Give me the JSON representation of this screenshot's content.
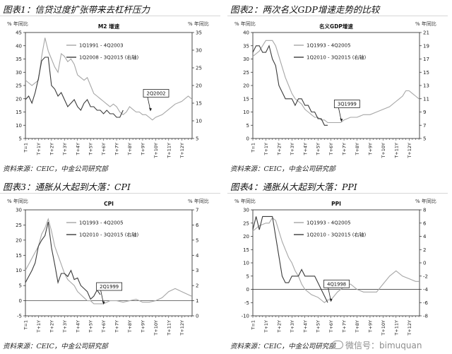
{
  "source_note": "资料来源：CEIC，中金公司研究部",
  "watermark": "微信号：bimuquan",
  "panels": [
    {
      "heading": "图表1：信贷过度扩张带来去杠杆压力",
      "source": "资料来源：CEIC，中金公司研究部",
      "chart_title": "M2 增速",
      "left_axis_label": "% 年同比",
      "right_axis_label": "% 年同比",
      "annotation": "2Q2002",
      "legend": [
        "1Q1991 - 4Q2003",
        "1Q2008 - 3Q2015 (右轴)"
      ],
      "colors": {
        "primary": "#a6a6a6",
        "secondary": "#3a3a3a"
      }
    },
    {
      "heading": "图表2：两次名义GDP增速走势的比较",
      "source": "资料来源：CEIC，中金公司研究部",
      "chart_title": "名义GDP增速",
      "left_axis_label": "% 年同比",
      "right_axis_label": "% 年同比",
      "annotation": "3Q1999",
      "legend": [
        "1Q1993 - 4Q2005",
        "1Q2010 - 3Q2015 (右轴)"
      ],
      "colors": {
        "primary": "#a6a6a6",
        "secondary": "#3a3a3a"
      }
    },
    {
      "heading": "图表3：通胀从大起到大落：CPI",
      "source": "资料来源：CEIC，中金公司研究部",
      "chart_title": "CPI",
      "left_axis_label": "% 年同比",
      "right_axis_label": "% 年同比",
      "annotation": "2Q1999",
      "legend": [
        "1Q1993 - 4Q2005",
        "1Q2010 - 3Q2015 (右轴)"
      ],
      "colors": {
        "primary": "#a6a6a6",
        "secondary": "#3a3a3a"
      }
    },
    {
      "heading": "图表4：通胀从大起到大落：PPI",
      "source": "资料来源：CEIC，中金公司研究部",
      "chart_title": "PPI",
      "left_axis_label": "% 年同比",
      "right_axis_label": "% 年同比",
      "annotation": "4Q1998",
      "legend": [
        "1Q1993 - 4Q2005",
        "1Q2010 - 3Q2015 (右轴)"
      ],
      "colors": {
        "primary": "#a6a6a6",
        "secondary": "#3a3a3a"
      }
    }
  ],
  "chart_data": [
    {
      "type": "line",
      "title": "M2 增速",
      "x": [
        "T=1",
        "T+1Y",
        "T+2Y",
        "T+3Y",
        "T+4Y",
        "T+5Y",
        "T+6Y",
        "T+7Y",
        "T+8Y",
        "T+9Y",
        "T+10Y",
        "T+11Y",
        "T+12Y"
      ],
      "ylim_left": [
        5,
        45
      ],
      "yticks_left": [
        5,
        10,
        15,
        20,
        25,
        30,
        35,
        40,
        45
      ],
      "ylim_right": [
        5,
        35
      ],
      "yticks_right": [
        5,
        10,
        15,
        20,
        25,
        30,
        35
      ],
      "annotation": {
        "label": "2Q2002",
        "x": 9.6,
        "y": 15
      },
      "series": [
        {
          "name": "1Q1991 - 4Q2003",
          "axis": "left",
          "x": [
            0,
            0.5,
            1,
            1.25,
            1.5,
            1.75,
            2,
            2.25,
            2.5,
            2.75,
            3,
            3.25,
            3.5,
            3.75,
            4,
            4.25,
            4.5,
            4.75,
            5,
            5.25,
            5.5,
            5.75,
            6,
            6.25,
            6.5,
            6.75,
            7,
            7.25,
            7.5,
            7.75,
            8,
            8.25,
            8.5,
            8.75,
            9,
            9.25,
            9.5,
            9.75,
            10,
            10.5,
            11,
            11.5,
            12,
            12.5,
            12.75
          ],
          "values": [
            27,
            25,
            27,
            36,
            43,
            38,
            35,
            32,
            30,
            37,
            36,
            34,
            35,
            33,
            29,
            28,
            27,
            28,
            25,
            22,
            21,
            20,
            19,
            18,
            17,
            18,
            17,
            15,
            14,
            15,
            17,
            16,
            15,
            15,
            14,
            14,
            13,
            12,
            13,
            14,
            16,
            18,
            19,
            21,
            20
          ]
        },
        {
          "name": "1Q2008 - 3Q2015 (右轴)",
          "axis": "right",
          "x": [
            0,
            0.25,
            0.5,
            0.75,
            1,
            1.25,
            1.5,
            1.75,
            2,
            2.25,
            2.5,
            2.75,
            3,
            3.25,
            3.5,
            3.75,
            4,
            4.25,
            4.5,
            4.75,
            5,
            5.25,
            5.5,
            5.75,
            6,
            6.25,
            6.5,
            6.75,
            7,
            7.25,
            7.5
          ],
          "values": [
            16,
            17,
            15,
            18,
            22,
            27,
            28,
            28,
            20,
            19,
            17,
            18,
            16,
            14,
            15,
            16,
            14,
            13,
            15,
            16,
            14,
            14,
            13,
            13,
            12,
            13,
            12,
            12,
            11,
            11,
            13
          ]
        }
      ]
    },
    {
      "type": "line",
      "title": "名义GDP增速",
      "x": [
        "T=1",
        "T+1Y",
        "T+2Y",
        "T+3Y",
        "T+4Y",
        "T+5Y",
        "T+6Y",
        "T+7Y",
        "T+8Y",
        "T+9Y",
        "T+10Y",
        "T+11Y",
        "T+12Y"
      ],
      "ylim_left": [
        0,
        40
      ],
      "yticks_left": [
        0,
        5,
        10,
        15,
        20,
        25,
        30,
        35,
        40
      ],
      "ylim_right": [
        5,
        21
      ],
      "yticks_right": [
        5,
        7,
        9,
        11,
        13,
        15,
        17,
        19,
        21
      ],
      "annotation": {
        "label": "3Q1999",
        "x": 6.8,
        "y": 6
      },
      "series": [
        {
          "name": "1Q1993 - 4Q2005",
          "axis": "left",
          "x": [
            0,
            0.5,
            1,
            1.25,
            1.5,
            1.75,
            2,
            2.25,
            2.5,
            2.75,
            3,
            3.25,
            3.5,
            3.75,
            4,
            4.25,
            4.5,
            4.75,
            5,
            5.25,
            5.5,
            5.75,
            6,
            6.25,
            6.5,
            6.75,
            7,
            7.5,
            8,
            8.5,
            9,
            9.5,
            10,
            10.5,
            11,
            11.25,
            11.5,
            11.75,
            12,
            12.25,
            12.5,
            12.75
          ],
          "values": [
            31,
            33,
            37,
            37,
            37,
            35,
            31,
            27,
            23,
            20,
            17,
            15,
            14,
            13,
            11,
            10,
            9,
            8,
            8,
            7,
            7,
            6,
            6,
            6,
            6,
            6,
            7,
            8,
            8,
            9,
            9,
            10,
            11,
            12,
            14,
            15,
            16,
            18,
            18,
            17,
            16,
            15
          ]
        },
        {
          "name": "1Q2010 - 3Q2015 (右轴)",
          "axis": "right",
          "x": [
            0,
            0.25,
            0.5,
            0.75,
            1,
            1.25,
            1.5,
            1.75,
            2,
            2.25,
            2.5,
            2.75,
            3,
            3.25,
            3.5,
            3.75,
            4,
            4.25,
            4.5,
            4.75,
            5,
            5.25,
            5.5,
            5.75
          ],
          "values": [
            18,
            19,
            19,
            18,
            18,
            19,
            17,
            16,
            13,
            12,
            11,
            11,
            11,
            10,
            11,
            11,
            10,
            10,
            9,
            9,
            8,
            8,
            7,
            7
          ]
        }
      ]
    },
    {
      "type": "line",
      "title": "CPI",
      "x": [
        "T=1",
        "T+1Y",
        "T+2Y",
        "T+3Y",
        "T+4Y",
        "T+5Y",
        "T+6Y",
        "T+7Y",
        "T+8Y",
        "T+9Y",
        "T+10Y",
        "T+11Y",
        "T+12Y"
      ],
      "ylim_left": [
        -5,
        30
      ],
      "yticks_left": [
        -5,
        0,
        5,
        10,
        15,
        20,
        25,
        30
      ],
      "ylim_right": [
        0,
        7
      ],
      "yticks_right": [
        0,
        1,
        2,
        3,
        4,
        5,
        6,
        7
      ],
      "annotation": {
        "label": "2Q1999",
        "x": 6.0,
        "y": -1.5
      },
      "series": [
        {
          "name": "1Q1993 - 4Q2005",
          "axis": "left",
          "x": [
            0,
            0.5,
            1,
            1.25,
            1.5,
            1.75,
            2,
            2.25,
            2.5,
            2.75,
            3,
            3.25,
            3.5,
            3.75,
            4,
            4.25,
            4.5,
            4.75,
            5,
            5.25,
            5.5,
            5.75,
            6,
            6.5,
            7,
            7.5,
            8,
            8.5,
            9,
            9.5,
            10,
            10.5,
            11,
            11.5,
            12,
            12.5,
            12.75
          ],
          "values": [
            10,
            14,
            18,
            22,
            24,
            27,
            23,
            18,
            15,
            12,
            9,
            7,
            6,
            5,
            3,
            2,
            1,
            0,
            0,
            -1,
            -1,
            -1,
            -1,
            0,
            0,
            -0.5,
            0,
            0.5,
            -0.5,
            -0.5,
            0,
            1,
            3,
            4,
            3,
            2,
            1.5
          ]
        },
        {
          "name": "1Q2010 - 3Q2015 (右轴)",
          "axis": "right",
          "x": [
            0,
            0.5,
            0.75,
            1,
            1.25,
            1.5,
            1.75,
            2,
            2.25,
            2.5,
            2.75,
            3,
            3.25,
            3.5,
            3.75,
            4,
            4.25,
            4.5,
            4.75,
            5,
            5.25,
            5.5,
            5.75
          ],
          "values": [
            2.2,
            3.0,
            3.5,
            4.6,
            5.0,
            5.3,
            6.2,
            4.5,
            3.4,
            2.2,
            2.8,
            2.8,
            2.6,
            3.0,
            2.4,
            2.5,
            2.0,
            1.8,
            1.6,
            1.1,
            1.3,
            1.7,
            1.4
          ]
        }
      ]
    },
    {
      "type": "line",
      "title": "PPI",
      "x": [
        "T=1",
        "T+1Y",
        "T+2Y",
        "T+3Y",
        "T+4Y",
        "T+5Y",
        "T+6Y",
        "T+7Y",
        "T+8Y",
        "T+9Y",
        "T+10Y",
        "T+11Y",
        "T+12Y"
      ],
      "ylim_left": [
        -10,
        30
      ],
      "yticks_left": [
        -10,
        -5,
        0,
        5,
        10,
        15,
        20,
        25,
        30
      ],
      "ylim_right": [
        -8,
        8
      ],
      "yticks_right": [
        -8,
        -6,
        -4,
        -2,
        0,
        2,
        4,
        6,
        8
      ],
      "annotation": {
        "label": "4Q1998",
        "x": 6.0,
        "y": -5
      },
      "series": [
        {
          "name": "1Q1993 - 4Q2005",
          "axis": "left",
          "x": [
            0,
            0.5,
            1,
            1.25,
            1.5,
            1.75,
            2,
            2.25,
            2.5,
            2.75,
            3,
            3.25,
            3.5,
            3.75,
            4,
            4.5,
            5,
            5.25,
            5.5,
            5.75,
            6,
            6.5,
            7,
            7.5,
            8,
            8.5,
            9,
            9.5,
            10,
            10.5,
            11,
            11.5,
            12,
            12.5,
            12.75
          ],
          "values": [
            22,
            24,
            25,
            25,
            27,
            26,
            22,
            18,
            15,
            12,
            10,
            7,
            5,
            2,
            0,
            -2,
            -3,
            -4,
            -5,
            -4,
            -4,
            -1,
            1,
            2,
            0,
            -1,
            -1,
            -1,
            2,
            5,
            7,
            5,
            4,
            3,
            3
          ]
        },
        {
          "name": "1Q2010 - 3Q2015 (右轴)",
          "axis": "right",
          "x": [
            0,
            0.25,
            0.5,
            0.75,
            1,
            1.25,
            1.5,
            1.75,
            2,
            2.25,
            2.5,
            2.75,
            3,
            3.25,
            3.5,
            3.75,
            4,
            4.25,
            4.5,
            4.75,
            5,
            5.25,
            5.5,
            5.75
          ],
          "values": [
            5,
            7,
            5,
            7,
            7,
            7,
            7,
            4,
            1,
            -2,
            -3,
            -3,
            -2,
            -2,
            -2,
            -1,
            -2,
            -2,
            -2,
            -2,
            -3,
            -4,
            -5,
            -6
          ]
        }
      ]
    }
  ]
}
